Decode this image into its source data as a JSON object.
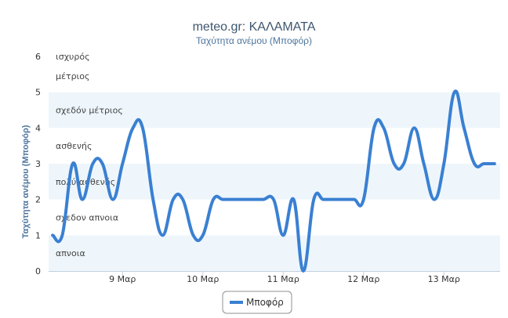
{
  "chart_data": {
    "type": "line",
    "title": "meteo.gr: ΚΑΛΑΜΑΤΑ",
    "subtitle": "Ταχύτητα ανέμου (Μποφόρ)",
    "ylabel": "Ταχύτητα ανέμου (Μποφόρ)",
    "ylim": [
      0,
      6
    ],
    "xlim": [
      8.08,
      13.7
    ],
    "yticks": [
      "0",
      "1",
      "2",
      "3",
      "4",
      "5",
      "6"
    ],
    "xticks": [
      {
        "v": 9,
        "label": "9 Μαρ"
      },
      {
        "v": 10,
        "label": "10 Μαρ"
      },
      {
        "v": 11,
        "label": "11 Μαρ"
      },
      {
        "v": 12,
        "label": "12 Μαρ"
      },
      {
        "v": 13,
        "label": "13 Μαρ"
      }
    ],
    "bands": [
      {
        "from": 0,
        "to": 1,
        "label": "απνοια",
        "color": "#eef6fc"
      },
      {
        "from": 1,
        "to": 2,
        "label": "σχεδον απνοια",
        "color": "#ffffff"
      },
      {
        "from": 2,
        "to": 3,
        "label": "πολύ ασθενής",
        "color": "#eef6fc"
      },
      {
        "from": 3,
        "to": 4,
        "label": "ασθενής",
        "color": "#ffffff"
      },
      {
        "from": 4,
        "to": 5,
        "label": "σχεδόν μέτριος",
        "color": "#eef6fc"
      },
      {
        "from": 5,
        "to": 6,
        "label": "μέτριος",
        "color": "#ffffff"
      },
      {
        "from": 6,
        "to": 6.5,
        "label": "ισχυρός",
        "color": "#ffffff"
      }
    ],
    "series": [
      {
        "name": "Μποφόρ",
        "color": "#3a80d2",
        "x": [
          8.13,
          8.25,
          8.38,
          8.5,
          8.63,
          8.75,
          8.88,
          9.0,
          9.13,
          9.25,
          9.38,
          9.5,
          9.63,
          9.75,
          9.88,
          10.0,
          10.13,
          10.25,
          10.38,
          10.5,
          10.63,
          10.75,
          10.88,
          11.0,
          11.13,
          11.25,
          11.38,
          11.5,
          11.63,
          11.75,
          11.88,
          12.0,
          12.13,
          12.25,
          12.38,
          12.5,
          12.63,
          12.75,
          12.88,
          13.0,
          13.13,
          13.25,
          13.38,
          13.5,
          13.63
        ],
        "values": [
          1,
          1,
          3,
          2,
          3,
          3,
          2,
          3,
          4,
          4,
          2,
          1,
          2,
          2,
          1,
          1,
          2,
          2,
          2,
          2,
          2,
          2,
          2,
          1,
          2,
          0,
          2,
          2,
          2,
          2,
          2,
          2,
          4,
          4,
          3,
          3,
          4,
          3,
          2,
          3,
          5,
          4,
          3,
          3,
          3
        ]
      }
    ],
    "legend": "bottom-center",
    "grid": true
  }
}
